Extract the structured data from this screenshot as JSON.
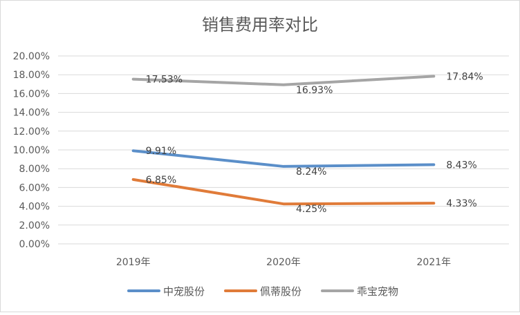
{
  "chart_data": {
    "type": "line",
    "title": "销售费用率对比",
    "categories": [
      "2019年",
      "2020年",
      "2021年"
    ],
    "ylim": [
      0,
      20
    ],
    "yticks": [
      "0.00%",
      "2.00%",
      "4.00%",
      "6.00%",
      "8.00%",
      "10.00%",
      "12.00%",
      "14.00%",
      "16.00%",
      "18.00%",
      "20.00%"
    ],
    "grid": true,
    "legend_position": "bottom",
    "series": [
      {
        "name": "中宠股份",
        "color": "#5b8fc9",
        "values": [
          9.91,
          8.24,
          8.43
        ],
        "labels": [
          "9.91%",
          "8.24%",
          "8.43%"
        ]
      },
      {
        "name": "佩蒂股份",
        "color": "#e07b39",
        "values": [
          6.85,
          4.25,
          4.33
        ],
        "labels": [
          "6.85%",
          "4.25%",
          "4.33%"
        ]
      },
      {
        "name": "乖宝宠物",
        "color": "#a5a5a5",
        "values": [
          17.53,
          16.93,
          17.84
        ],
        "labels": [
          "17.53%",
          "16.93%",
          "17.84%"
        ]
      }
    ]
  }
}
